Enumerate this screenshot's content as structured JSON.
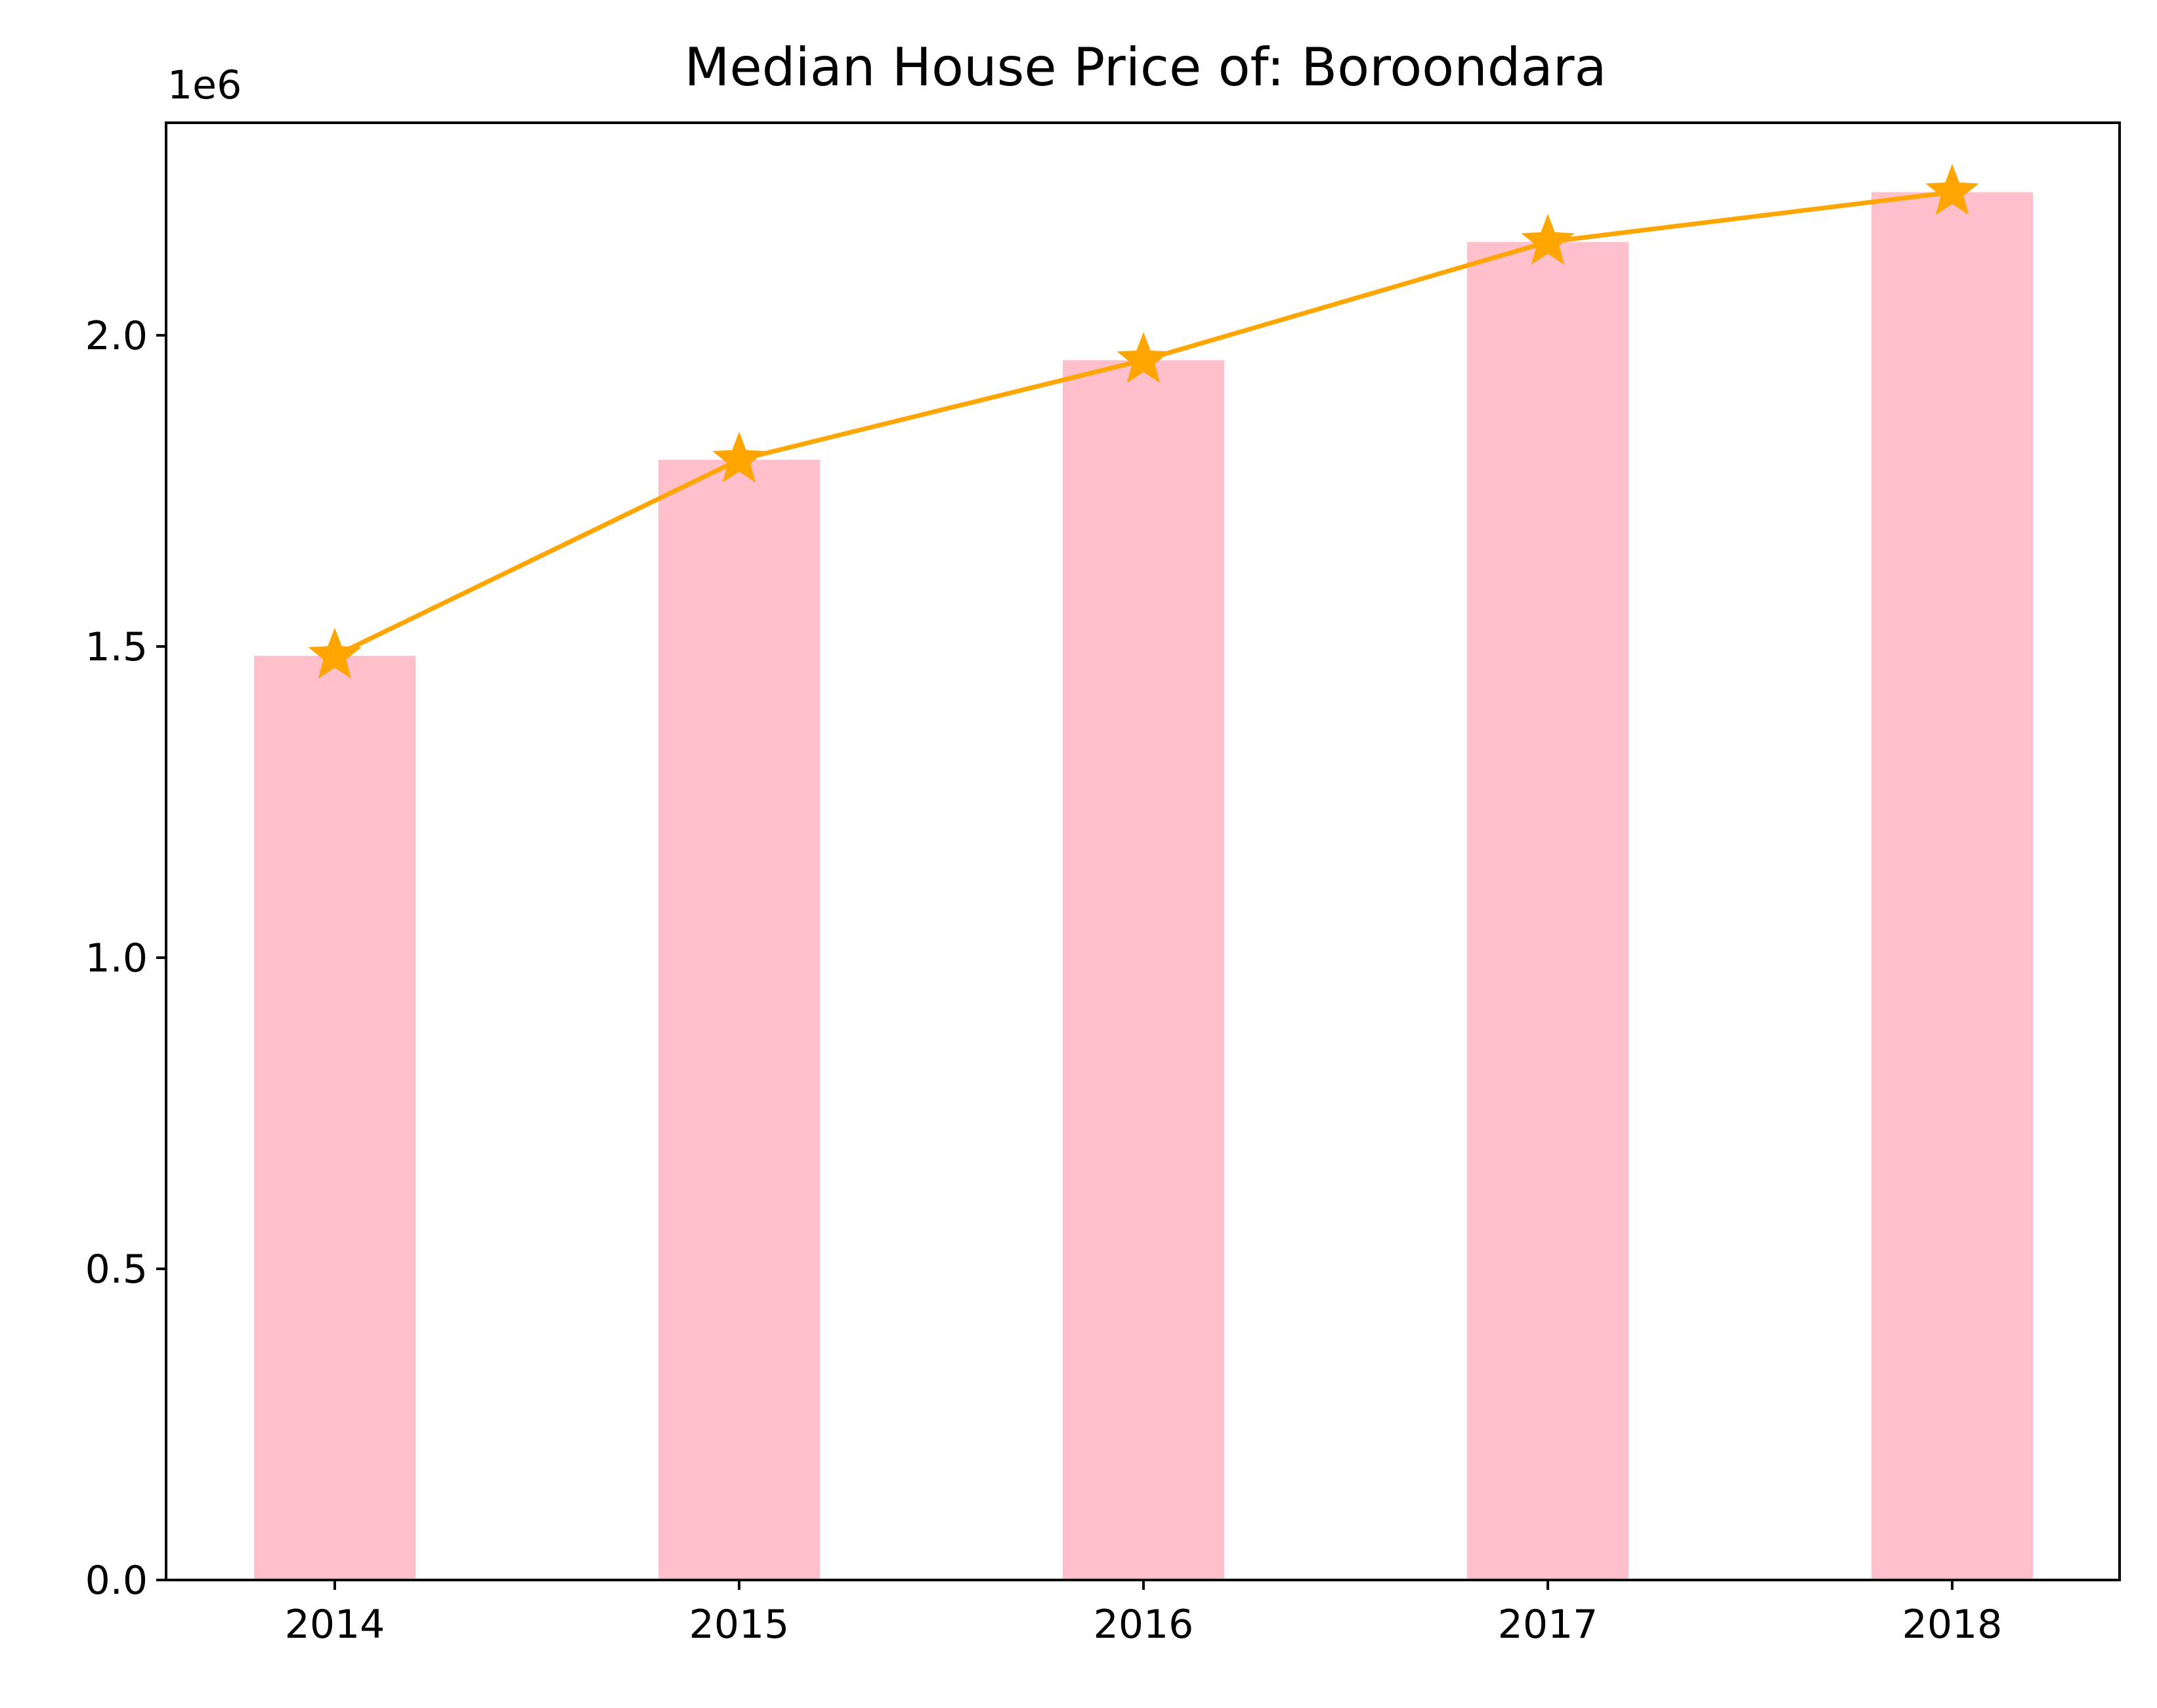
{
  "chart_data": {
    "type": "bar",
    "title": "Median House Price of: Boroondara",
    "xlabel": "",
    "ylabel": "",
    "y_offset_label": "1e6",
    "categories": [
      "2014",
      "2015",
      "2016",
      "2017",
      "2018"
    ],
    "series": [
      {
        "type": "bar",
        "values": [
          1485000,
          1800000,
          1960000,
          2150000,
          2230000
        ],
        "color": "#ffc0cb"
      },
      {
        "type": "line",
        "marker": "star",
        "values": [
          1485000,
          1800000,
          1960000,
          2150000,
          2230000
        ],
        "color": "#ffa500"
      }
    ],
    "yticks": [
      0,
      500000,
      1000000,
      1500000,
      2000000
    ],
    "ytick_labels": [
      "0.0",
      "0.5",
      "1.0",
      "1.5",
      "2.0"
    ],
    "ylim": [
      0,
      2341500
    ],
    "grid": false,
    "legend": "none"
  }
}
